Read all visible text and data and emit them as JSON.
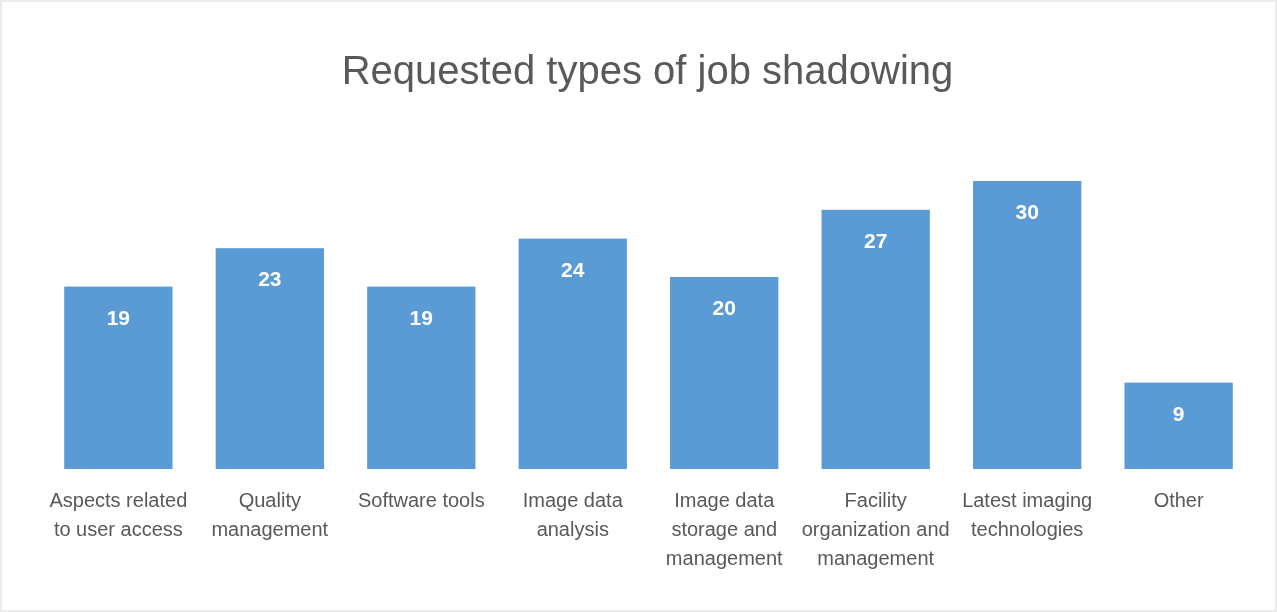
{
  "chart_data": {
    "type": "bar",
    "title": "Requested types of job shadowing",
    "categories": [
      "Aspects related to user access",
      "Quality management",
      "Software tools",
      "Image data analysis",
      "Image data storage and management",
      "Facility organization and management",
      "Latest imaging technologies",
      "Other"
    ],
    "values": [
      19,
      23,
      19,
      24,
      20,
      27,
      30,
      9
    ],
    "color": "#5b9bd5",
    "data_labels": true
  }
}
